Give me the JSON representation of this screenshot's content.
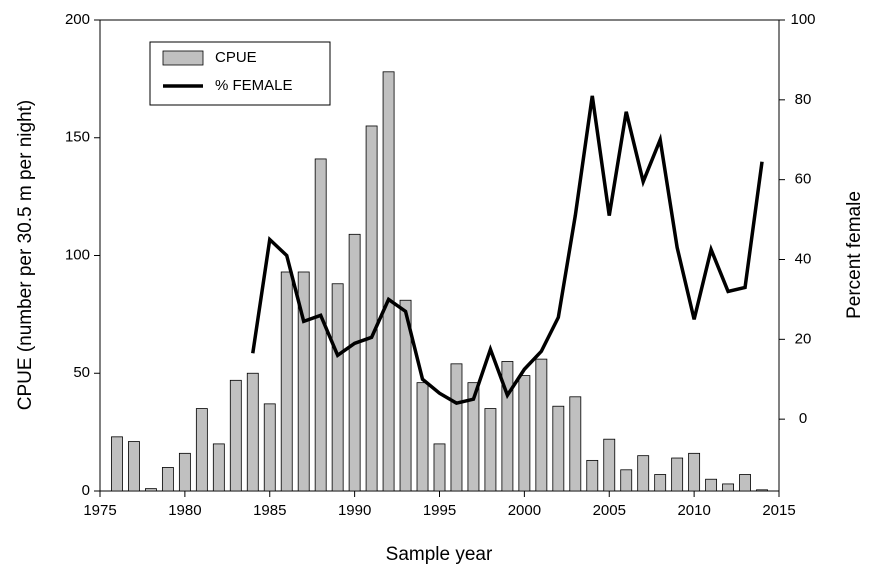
{
  "chart_data": {
    "type": "bar-line",
    "xlabel": "Sample year",
    "ylabel": "CPUE (number per 30.5 m per night)",
    "y2label": "Percent female",
    "x": [
      1976,
      1977,
      1978,
      1979,
      1980,
      1981,
      1982,
      1983,
      1984,
      1985,
      1986,
      1987,
      1988,
      1989,
      1990,
      1991,
      1992,
      1993,
      1994,
      1995,
      1996,
      1997,
      1998,
      1999,
      2000,
      2001,
      2002,
      2003,
      2004,
      2005,
      2006,
      2007,
      2008,
      2009,
      2010,
      2011,
      2012,
      2013,
      2014
    ],
    "series": [
      {
        "name": "CPUE",
        "type": "bar",
        "color": "#c0c0c0",
        "values": [
          23,
          21,
          1,
          10,
          16,
          35,
          20,
          47,
          50,
          37,
          93,
          93,
          141,
          88,
          109,
          155,
          178,
          81,
          46,
          20,
          54,
          46,
          35,
          55,
          49,
          56,
          36,
          40,
          13,
          22,
          9,
          15,
          7,
          14,
          16,
          5,
          3,
          7,
          0.5
        ]
      },
      {
        "name": "% FEMALE",
        "type": "line",
        "axis": "y2",
        "color": "#000000",
        "values": [
          null,
          null,
          null,
          null,
          null,
          null,
          null,
          null,
          16.5,
          45,
          41,
          24.5,
          26,
          16,
          19,
          20.5,
          30,
          27,
          10,
          6.5,
          4,
          5,
          17.5,
          6,
          12.5,
          17,
          25.5,
          51,
          81,
          51,
          77,
          59.5,
          70,
          43,
          25,
          42.5,
          32,
          33,
          64.5
        ]
      }
    ],
    "xlim": [
      1975,
      2015
    ],
    "xticks": [
      1975,
      1980,
      1985,
      1990,
      1995,
      2000,
      2005,
      2010,
      2015
    ],
    "ylim": [
      0,
      200
    ],
    "yticks": [
      0,
      50,
      100,
      150,
      200
    ],
    "y2lim": [
      -18,
      100
    ],
    "y2ticks": [
      0,
      20,
      40,
      60,
      80,
      100
    ],
    "legend": "upper left"
  }
}
